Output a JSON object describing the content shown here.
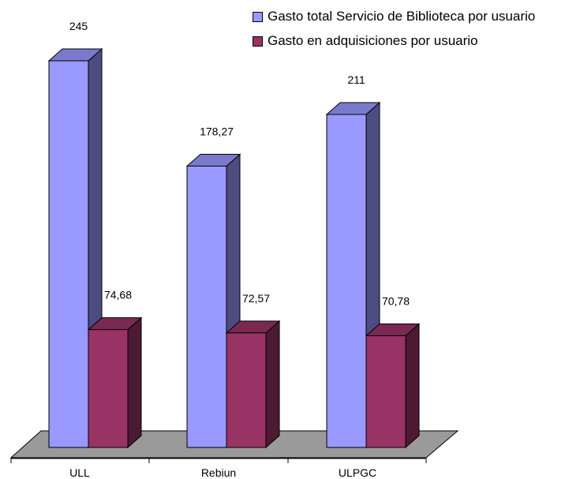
{
  "chart_data": {
    "type": "bar",
    "categories": [
      "ULL",
      "Rebiun",
      "ULPGC"
    ],
    "series": [
      {
        "name": "Gasto total Servicio de Biblioteca por usuario",
        "values": [
          245,
          178.27,
          211
        ],
        "labels": [
          "245",
          "178,27",
          "211"
        ],
        "color": "#9999ff",
        "side_color": "#4c4c80",
        "top_color": "#7a7acc"
      },
      {
        "name": "Gasto en adquisiciones por usuario",
        "values": [
          74.68,
          72.57,
          70.78
        ],
        "labels": [
          "74,68",
          "72,57",
          "70,78"
        ],
        "color": "#993366",
        "side_color": "#4d1a33",
        "top_color": "#7a2952"
      }
    ],
    "ylim": [
      0,
      260
    ],
    "three_d": true,
    "floor_color": "#9a9a9a",
    "legend_position": "top-right",
    "grid": false
  }
}
